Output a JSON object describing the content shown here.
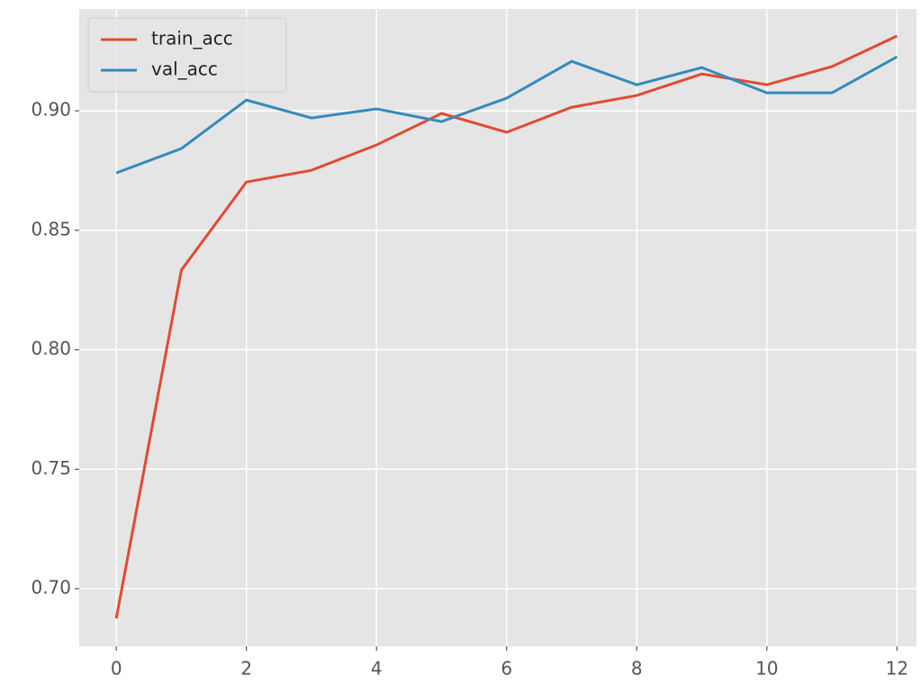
{
  "chart_data": {
    "type": "line",
    "x": [
      0,
      1,
      2,
      3,
      4,
      5,
      6,
      7,
      8,
      9,
      10,
      11,
      12
    ],
    "series": [
      {
        "name": "train_acc",
        "color": "#E24A33",
        "values": [
          0.6876,
          0.8333,
          0.8702,
          0.8751,
          0.8857,
          0.8989,
          0.891,
          0.9015,
          0.9064,
          0.9154,
          0.9109,
          0.9185,
          0.9313
        ]
      },
      {
        "name": "val_acc",
        "color": "#348ABD",
        "values": [
          0.874,
          0.8842,
          0.9045,
          0.897,
          0.9008,
          0.8955,
          0.9053,
          0.9207,
          0.9109,
          0.9181,
          0.9075,
          0.9075,
          0.9226
        ]
      }
    ],
    "xlim": [
      -0.57,
      12.3
    ],
    "ylim": [
      0.6759,
      0.9426
    ],
    "xticks": [
      0,
      2,
      4,
      6,
      8,
      10,
      12
    ],
    "yticks": [
      {
        "value": 0.7,
        "label": "0.70"
      },
      {
        "value": 0.75,
        "label": "0.75"
      },
      {
        "value": 0.8,
        "label": "0.80"
      },
      {
        "value": 0.85,
        "label": "0.85"
      },
      {
        "value": 0.9,
        "label": "0.90"
      }
    ],
    "grid": true,
    "legend": "upper left"
  }
}
